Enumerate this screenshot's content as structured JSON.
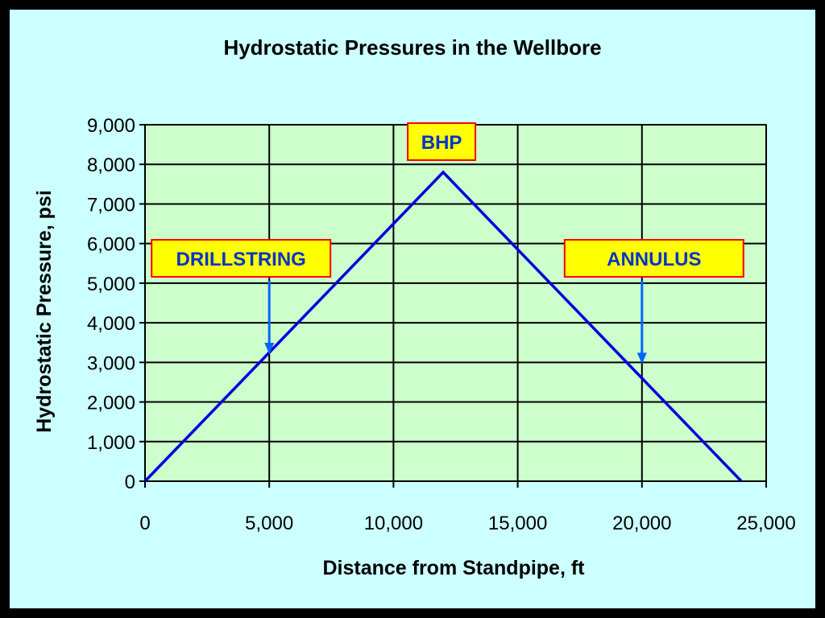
{
  "chart_data": {
    "type": "line",
    "title": "Hydrostatic Pressures in the Wellbore",
    "xlabel": "Distance from Standpipe,  ft",
    "ylabel": "Hydrostatic Pressure,  psi",
    "xlim": [
      0,
      25000
    ],
    "ylim": [
      0,
      9000
    ],
    "x_ticks": [
      0,
      5000,
      10000,
      15000,
      20000,
      25000
    ],
    "x_tick_labels": [
      "0",
      "5,000",
      "10,000",
      "15,000",
      "20,000",
      "25,000"
    ],
    "y_ticks": [
      0,
      1000,
      2000,
      3000,
      4000,
      5000,
      6000,
      7000,
      8000,
      9000
    ],
    "y_tick_labels": [
      "0",
      "1,000",
      "2,000",
      "3,000",
      "4,000",
      "5,000",
      "6,000",
      "7,000",
      "8,000",
      "9,000"
    ],
    "grid": true,
    "series": [
      {
        "x": [
          0,
          12000,
          24000
        ],
        "y": [
          0,
          7800,
          0
        ],
        "color": "#0000dd"
      }
    ],
    "annotations": [
      {
        "text": "BHP",
        "x": 12000,
        "y": 7800
      },
      {
        "text": "DRILLSTRING",
        "x": 5000,
        "y": 3250
      },
      {
        "text": "ANNULUS",
        "x": 20000,
        "y": 3000
      }
    ]
  },
  "colors": {
    "background": "#ccffff",
    "plot_area": "#ccffcc",
    "line": "#0000dd",
    "callout_fill": "#ffff00",
    "callout_border": "#ff0000",
    "callout_text": "#0033cc",
    "arrow": "#0066ff",
    "frame": "#000000"
  }
}
